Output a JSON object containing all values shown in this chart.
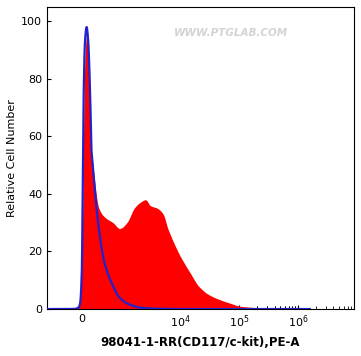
{
  "title": "",
  "xlabel": "98041-1-RR(CD117/c-kit),PE-A",
  "ylabel": "Relative Cell Number",
  "ylim": [
    0,
    105
  ],
  "yticks": [
    0,
    20,
    40,
    60,
    80,
    100
  ],
  "watermark": "WWW.PTGLAB.COM",
  "bg_color": "#ffffff",
  "plot_bg": "#ffffff",
  "red_fill_color": "#ff0000",
  "blue_line_color": "#2222cc",
  "red_alpha": 1.0,
  "blue_lw": 1.6,
  "linthresh": 300,
  "linscale": 0.15,
  "xlim": [
    -800,
    1500000
  ],
  "xtick_positions": [
    0,
    10000,
    100000,
    1000000
  ],
  "xtick_labels": [
    "0",
    "10^4",
    "10^5",
    "10^6"
  ],
  "red_curve_x": [
    -800,
    -600,
    -400,
    -200,
    -100,
    -50,
    0,
    30,
    60,
    100,
    150,
    200,
    250,
    300,
    400,
    500,
    700,
    900,
    1200,
    1600,
    2000,
    2500,
    3000,
    4000,
    5000,
    6000,
    8000,
    10000,
    15000,
    20000,
    30000,
    50000,
    70000,
    100000,
    200000,
    500000,
    1000000,
    1500000
  ],
  "red_curve_y": [
    0,
    0,
    0.2,
    0.5,
    1.5,
    4,
    15,
    35,
    65,
    88,
    95,
    91,
    75,
    55,
    35,
    32,
    30,
    28,
    30,
    35,
    37,
    38,
    36,
    35,
    33,
    28,
    22,
    18,
    12,
    8,
    5,
    3,
    2,
    1,
    0.5,
    0.2,
    0.05,
    0
  ],
  "blue_curve_x": [
    -800,
    -600,
    -400,
    -200,
    -100,
    -50,
    0,
    30,
    60,
    100,
    150,
    200,
    250,
    300,
    400,
    500,
    700,
    900,
    1200,
    1600,
    2000,
    2500,
    3000,
    4000,
    5000,
    6000,
    8000,
    10000,
    15000,
    20000,
    50000,
    1000000,
    1500000
  ],
  "blue_curve_y": [
    0,
    0,
    0,
    0.1,
    0.5,
    2,
    12,
    40,
    75,
    93,
    98,
    93,
    78,
    55,
    28,
    16,
    8,
    4,
    2,
    1,
    0.5,
    0.3,
    0.2,
    0.1,
    0.1,
    0.05,
    0.02,
    0.01,
    0,
    0,
    0,
    0,
    0
  ]
}
